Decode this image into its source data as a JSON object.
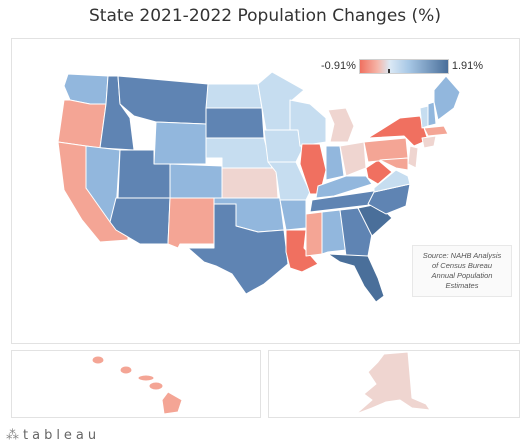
{
  "title": "State 2021-2022 Population Changes (%)",
  "legend": {
    "min_label": "-0.91%",
    "max_label": "1.91%"
  },
  "source": {
    "lines": [
      "Source: NAHB Analysis",
      "of Census Bureau",
      "Annual Population",
      "Estimates"
    ]
  },
  "footer": {
    "brand": "tableau",
    "logo_icon": "tableau-logo-icon"
  },
  "colors": {
    "strong_decline": "#f07060",
    "decline": "#f4a595",
    "slight_decline": "#efd5d0",
    "slight_growth": "#c6ddf0",
    "growth": "#92b7dd",
    "strong_growth": "#5f84b3",
    "max_growth": "#4a6f9a"
  }
}
